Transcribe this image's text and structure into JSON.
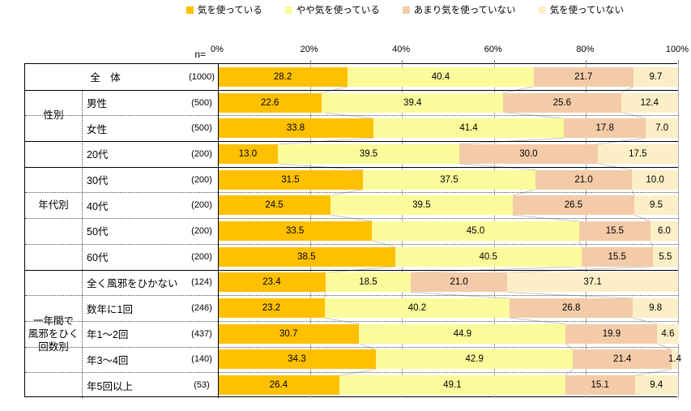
{
  "legend": {
    "items": [
      {
        "label": "気を使っている",
        "color": "#FFC000"
      },
      {
        "label": "やや気を使っている",
        "color": "#FBFB9B"
      },
      {
        "label": "あまり気を使っていない",
        "color": "#F4CBA8"
      },
      {
        "label": "気を使っていない",
        "color": "#FCEEC6"
      }
    ]
  },
  "axis": {
    "n_label": "n=",
    "ticks": [
      "0%",
      "20%",
      "40%",
      "60%",
      "80%",
      "100%"
    ]
  },
  "chart_data": {
    "type": "bar",
    "stacked": true,
    "orientation": "horizontal",
    "xlim": [
      0,
      100
    ],
    "grid": true,
    "legend_position": "top",
    "series_names": [
      "気を使っている",
      "やや気を使っている",
      "あまり気を使っていない",
      "気を使っていない"
    ],
    "series_colors": [
      "#FFC000",
      "#FBFB9B",
      "#F4CBA8",
      "#FCEEC6"
    ],
    "groups": [
      {
        "name": "",
        "rows": [
          {
            "label": "全　体",
            "n": "(1000)",
            "values": [
              28.2,
              40.4,
              21.7,
              9.7
            ]
          }
        ]
      },
      {
        "name": "性別",
        "rows": [
          {
            "label": "男性",
            "n": "(500)",
            "values": [
              22.6,
              39.4,
              25.6,
              12.4
            ]
          },
          {
            "label": "女性",
            "n": "(500)",
            "values": [
              33.8,
              41.4,
              17.8,
              7.0
            ]
          }
        ]
      },
      {
        "name": "年代別",
        "rows": [
          {
            "label": "20代",
            "n": "(200)",
            "values": [
              13.0,
              39.5,
              30.0,
              17.5
            ]
          },
          {
            "label": "30代",
            "n": "(200)",
            "values": [
              31.5,
              37.5,
              21.0,
              10.0
            ]
          },
          {
            "label": "40代",
            "n": "(200)",
            "values": [
              24.5,
              39.5,
              26.5,
              9.5
            ]
          },
          {
            "label": "50代",
            "n": "(200)",
            "values": [
              33.5,
              45.0,
              15.5,
              6.0
            ]
          },
          {
            "label": "60代",
            "n": "(200)",
            "values": [
              38.5,
              40.5,
              15.5,
              5.5
            ]
          }
        ]
      },
      {
        "name": "一年間で\n風邪をひく\n回数別",
        "rows": [
          {
            "label": "全く風邪をひかない",
            "n": "(124)",
            "values": [
              23.4,
              18.5,
              21.0,
              37.1
            ]
          },
          {
            "label": "数年に1回",
            "n": "(246)",
            "values": [
              23.2,
              40.2,
              26.8,
              9.8
            ]
          },
          {
            "label": "年1〜2回",
            "n": "(437)",
            "values": [
              30.7,
              44.9,
              19.9,
              4.6
            ]
          },
          {
            "label": "年3〜4回",
            "n": "(140)",
            "values": [
              34.3,
              42.9,
              21.4,
              1.4
            ]
          },
          {
            "label": "年5回以上",
            "n": "(53)",
            "values": [
              26.4,
              49.1,
              15.1,
              9.4
            ]
          }
        ]
      }
    ],
    "row_dividers": [
      "solid",
      "dotted",
      "solid",
      "solid",
      "dotted",
      "dotted",
      "dotted",
      "solid",
      "dotted",
      "dotted",
      "dotted",
      "dotted"
    ]
  }
}
